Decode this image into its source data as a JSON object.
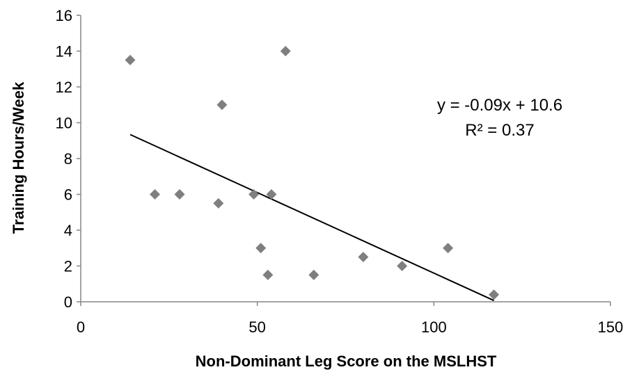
{
  "chart_data": {
    "type": "scatter",
    "xlabel": "Non-Dominant Leg Score on the MSLHST",
    "ylabel": "Training Hours/Week",
    "xlim": [
      0,
      150
    ],
    "ylim": [
      0,
      16
    ],
    "x_ticks": [
      "0",
      "50",
      "100",
      "150"
    ],
    "y_ticks": [
      "0",
      "2",
      "4",
      "6",
      "8",
      "10",
      "12",
      "14",
      "16"
    ],
    "grid": false,
    "series": [
      {
        "marker": "diamond",
        "color": "#7f7f7f",
        "points": [
          {
            "x": 14,
            "y": 13.5
          },
          {
            "x": 21,
            "y": 6
          },
          {
            "x": 28,
            "y": 6
          },
          {
            "x": 39,
            "y": 5.5
          },
          {
            "x": 40,
            "y": 11
          },
          {
            "x": 49,
            "y": 6
          },
          {
            "x": 51,
            "y": 3
          },
          {
            "x": 53,
            "y": 1.5
          },
          {
            "x": 54,
            "y": 6
          },
          {
            "x": 58,
            "y": 14
          },
          {
            "x": 66,
            "y": 1.5
          },
          {
            "x": 80,
            "y": 2.5
          },
          {
            "x": 91,
            "y": 2
          },
          {
            "x": 104,
            "y": 3
          },
          {
            "x": 117,
            "y": 0.4
          }
        ]
      }
    ],
    "trendline": {
      "type": "linear",
      "slope": -0.09,
      "intercept": 10.6,
      "x_range": [
        14,
        117
      ],
      "color": "#000000"
    },
    "annotations": {
      "equation": "y = -0.09x + 10.6",
      "r_squared": "R² = 0.37"
    }
  }
}
